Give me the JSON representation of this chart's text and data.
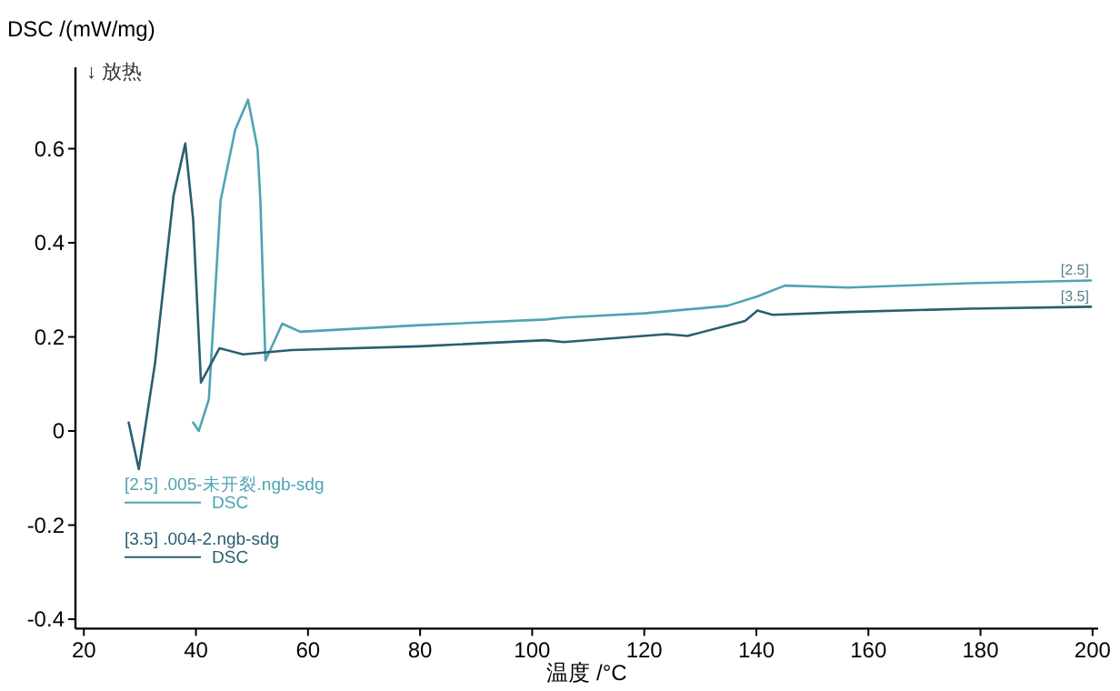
{
  "chart_data": {
    "type": "line",
    "ylabel": "DSC /(mW/mg)",
    "xlabel": "温度 /°C",
    "xlim": [
      18.5,
      201
    ],
    "ylim": [
      -0.42,
      0.773
    ],
    "xticks": [
      20,
      40,
      60,
      80,
      100,
      120,
      140,
      160,
      180,
      200
    ],
    "yticks": [
      -0.4,
      -0.2,
      0.0,
      0.2,
      0.4,
      0.6
    ],
    "grid": false,
    "legend": "left",
    "marker": "none",
    "line_style": "solid",
    "annotations": [
      "↓ 放热",
      {
        "text": "[2.5]",
        "x": 199.7,
        "y": 0.32
      },
      {
        "text": "[3.5]",
        "x": 199.7,
        "y": 0.264
      }
    ],
    "series": [
      {
        "name": "[2.5] .005-未开裂.ngb-sdg\nDSC",
        "color": "#4fa3b5",
        "x": [
          39.5,
          40.5,
          42.3,
          44.4,
          47,
          49.3,
          51,
          51.5,
          52.4,
          55.4,
          58.6,
          80,
          102.4,
          105.7,
          120,
          134.8,
          140.2,
          145.1,
          156.5,
          178,
          199.7
        ],
        "values": [
          0.018,
          0.0,
          0.067,
          0.49,
          0.64,
          0.704,
          0.6,
          0.49,
          0.15,
          0.228,
          0.211,
          0.225,
          0.237,
          0.241,
          0.25,
          0.266,
          0.286,
          0.309,
          0.305,
          0.314,
          0.32
        ]
      },
      {
        "name": "[3.5] .004-2.ngb-sdg\nDSC",
        "color": "#2a5f70",
        "x": [
          28.0,
          29.8,
          32.7,
          36,
          38.1,
          39.5,
          40.9,
          44.2,
          48.4,
          57.1,
          80,
          102.4,
          105.6,
          124,
          127.7,
          138,
          140.2,
          142.9,
          156.5,
          178,
          199.7
        ],
        "values": [
          0.018,
          -0.081,
          0.144,
          0.5,
          0.611,
          0.45,
          0.103,
          0.176,
          0.163,
          0.172,
          0.18,
          0.193,
          0.189,
          0.206,
          0.202,
          0.234,
          0.256,
          0.247,
          0.253,
          0.26,
          0.264
        ]
      }
    ]
  }
}
